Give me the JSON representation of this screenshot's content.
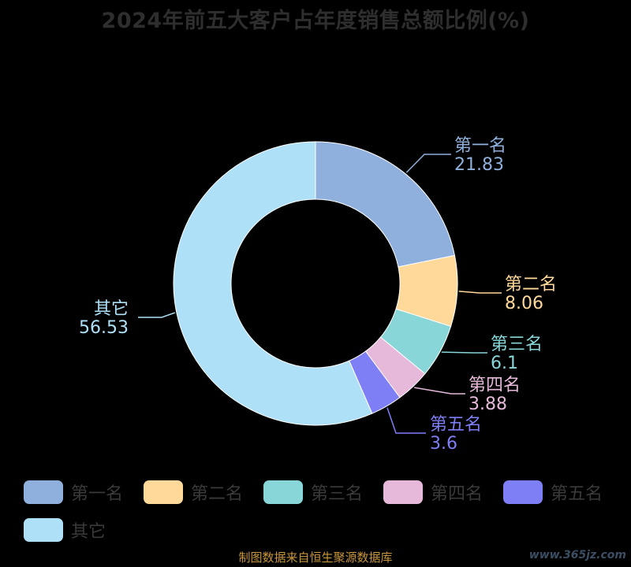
{
  "chart_data": {
    "type": "pie",
    "title": "2024年前五大客户占年度销售总额比例(%)",
    "categories": [
      "第一名",
      "第二名",
      "第三名",
      "第四名",
      "第五名",
      "其它"
    ],
    "values": [
      21.83,
      8.06,
      6.1,
      3.88,
      3.6,
      56.53
    ],
    "colors": [
      "#8fb0dc",
      "#ffd999",
      "#88d6d8",
      "#e6b9da",
      "#7f7ff5",
      "#aee0f8"
    ],
    "legend_position": "bottom"
  },
  "footer": {
    "source": "制图数据来自恒生聚源数据库",
    "watermark": "www.365jz.com"
  }
}
